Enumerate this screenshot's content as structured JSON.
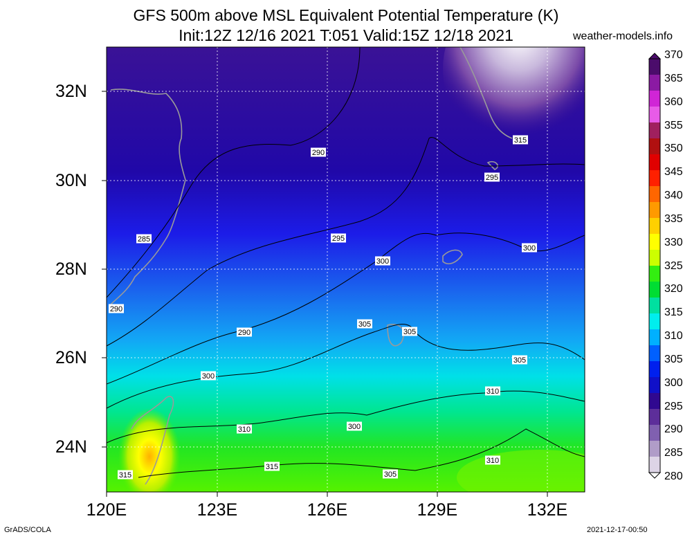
{
  "title": {
    "line1": "GFS 500m above MSL Equivalent Potential Temperature (K)",
    "line2": "Init:12Z 12/16 2021 T:051 Valid:15Z 12/18 2021"
  },
  "site": "weather-models.info",
  "lat_labels": [
    "32N",
    "30N",
    "28N",
    "26N",
    "24N"
  ],
  "lon_labels": [
    "120E",
    "123E",
    "126E",
    "129E",
    "132E"
  ],
  "colorbar": {
    "labels": [
      "370",
      "365",
      "360",
      "355",
      "350",
      "345",
      "340",
      "335",
      "330",
      "325",
      "320",
      "315",
      "310",
      "305",
      "300",
      "295",
      "290",
      "285",
      "280"
    ],
    "colors": [
      "#4b0c6b",
      "#8b1aa3",
      "#d025d6",
      "#e85be8",
      "#a0205e",
      "#b01010",
      "#e00000",
      "#ff2000",
      "#ff6600",
      "#ff9a00",
      "#ffd000",
      "#ffff00",
      "#ccff00",
      "#33ee11",
      "#00dd33",
      "#00e0a0",
      "#00eeee",
      "#00b0ff",
      "#0060ff",
      "#0020ee",
      "#1010c8",
      "#300890",
      "#5d2e9a",
      "#8060b0",
      "#b09cc8",
      "#ddd4e6"
    ]
  },
  "contour_labels": [
    "290",
    "295",
    "300",
    "305",
    "310",
    "315",
    "285",
    "290",
    "295",
    "300",
    "305",
    "310",
    "315",
    "290",
    "300",
    "305",
    "300",
    "305",
    "310",
    "315",
    "305",
    "310"
  ],
  "footer": {
    "left": "GrADS/COLA",
    "right": "2021-12-17-00:50"
  }
}
